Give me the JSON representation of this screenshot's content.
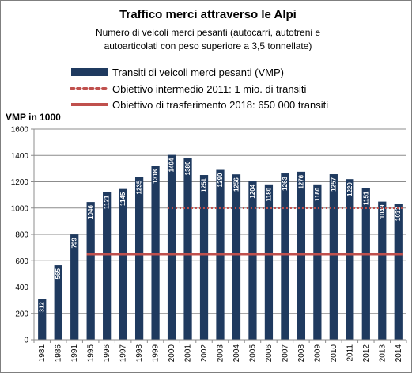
{
  "chart_data": {
    "type": "bar",
    "title": "Traffico merci attraverso le Alpi",
    "subtitle_lines": [
      "Numero  di veicoli merci pesanti (autocarri, autotreni e",
      "autoarticolati con peso superiore a 3,5 tonnellate)"
    ],
    "ylabel": "VMP in 1000",
    "xlabel": "",
    "ylim": [
      0,
      1600
    ],
    "yticks": [
      0,
      200,
      400,
      600,
      800,
      1000,
      1200,
      1400,
      1600
    ],
    "grid": true,
    "legend_position": "top",
    "categories": [
      "1981",
      "1986",
      "1991",
      "1995",
      "1996",
      "1997",
      "1998",
      "1999",
      "2000",
      "2001",
      "2002",
      "2003",
      "2004",
      "2005",
      "2006",
      "2007",
      "2008",
      "2009",
      "2010",
      "2011",
      "2012",
      "2013",
      "2014"
    ],
    "series": [
      {
        "name": "Transiti di veicoli  merci pesanti  (VMP)",
        "type": "bar",
        "values": [
          312,
          565,
          799,
          1046,
          1121,
          1145,
          1235,
          1318,
          1404,
          1380,
          1251,
          1290,
          1256,
          1204,
          1180,
          1263,
          1276,
          1180,
          1257,
          1220,
          1151,
          1049,
          1033
        ],
        "data_labels": [
          "312",
          "565",
          "799",
          "1046",
          "1121",
          "1145",
          "1235",
          "1318",
          "1404",
          "1380",
          "1251",
          "1290",
          "1256",
          "1204",
          "1180",
          "1263",
          "1276",
          "1180",
          "1257",
          "1220",
          "1151",
          "1049",
          "1033"
        ],
        "color": "#1f3a5f"
      },
      {
        "name": "Obiettivo  intermedio 2011: 1  mio. di transiti",
        "type": "dotted-line",
        "value": 1000,
        "x_range": [
          "2000",
          "2014"
        ],
        "color": "#c0504d"
      },
      {
        "name": "Obiettivo di trasferimento  2018: 650 000 transiti",
        "type": "line",
        "value": 650,
        "x_range": [
          "1995",
          "2014"
        ],
        "color": "#c0504d"
      }
    ]
  }
}
